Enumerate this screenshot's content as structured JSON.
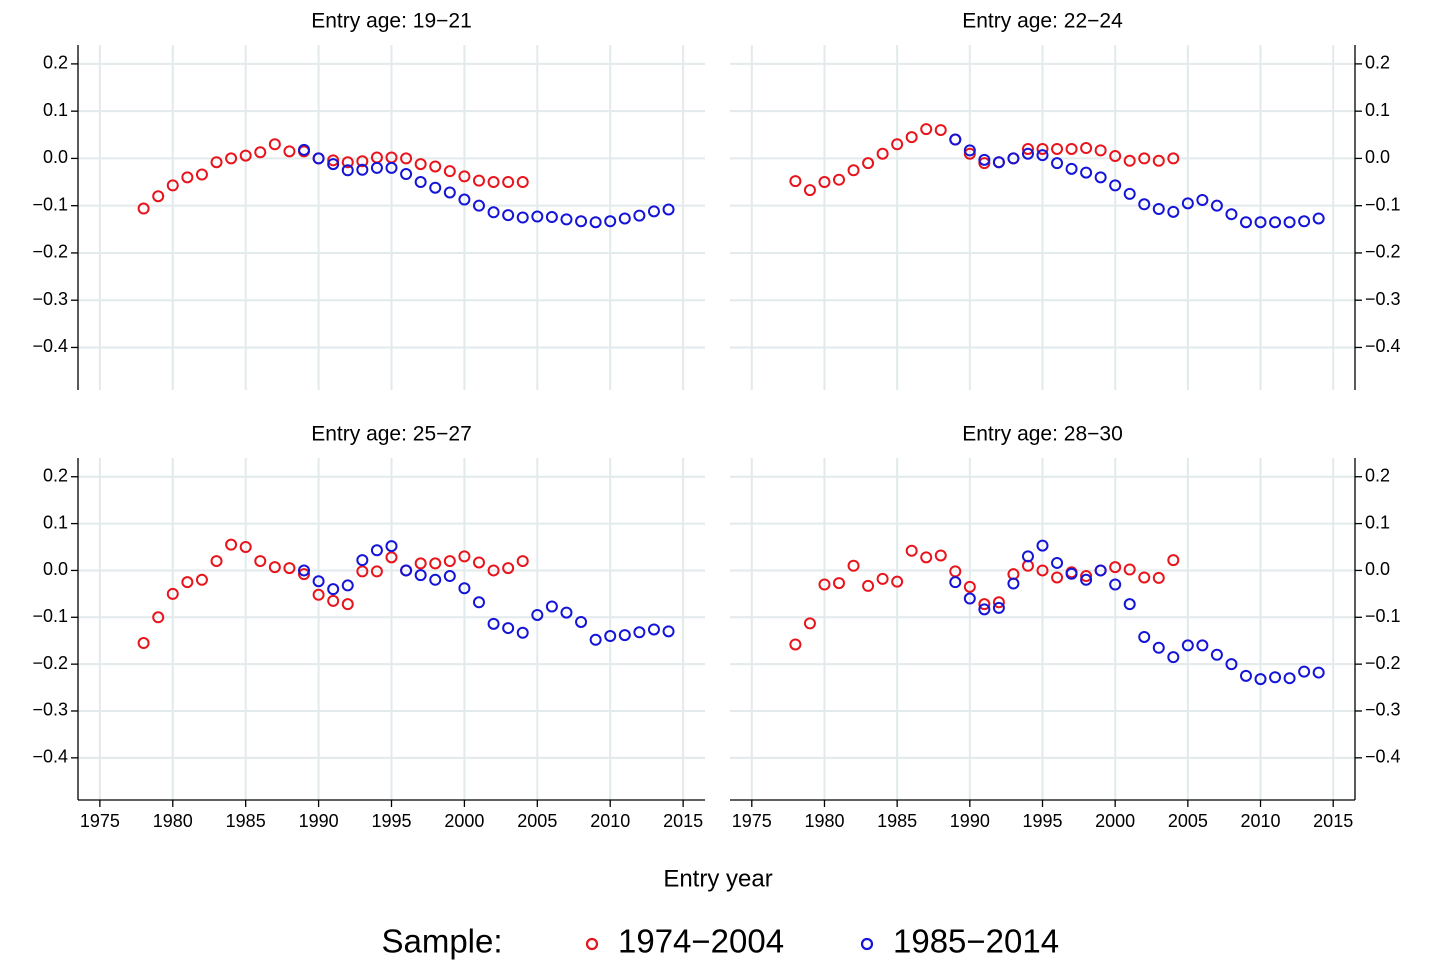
{
  "x_label": "Entry year",
  "legend_title": "Sample:",
  "chart_data": [
    {
      "type": "scatter",
      "title": "Entry age: 19−21",
      "y_axis_side": "left",
      "xtick_labels": false,
      "grid": true,
      "x": [
        1978,
        1979,
        1980,
        1981,
        1982,
        1983,
        1984,
        1985,
        1986,
        1987,
        1988,
        1989,
        1990,
        1991,
        1992,
        1993,
        1994,
        1995,
        1996,
        1997,
        1998,
        1999,
        2000,
        2001,
        2002,
        2003,
        2004,
        2005,
        2006,
        2007,
        2008,
        2009,
        2010,
        2011,
        2012,
        2013,
        2014
      ],
      "series": [
        {
          "name": "1974−2004",
          "color": "#e8141c",
          "values": [
            -0.106,
            -0.08,
            -0.057,
            -0.04,
            -0.034,
            -0.008,
            0.0,
            0.006,
            0.013,
            0.03,
            0.015,
            0.015,
            0.0,
            -0.004,
            -0.008,
            -0.006,
            0.002,
            0.002,
            0.0,
            -0.012,
            -0.017,
            -0.027,
            -0.038,
            -0.047,
            -0.05,
            -0.05,
            -0.05,
            null,
            null,
            null,
            null,
            null,
            null,
            null,
            null,
            null,
            null
          ]
        },
        {
          "name": "1985−2014",
          "color": "#1414d8",
          "values": [
            null,
            null,
            null,
            null,
            null,
            null,
            null,
            null,
            null,
            null,
            null,
            0.018,
            0.0,
            -0.012,
            -0.025,
            -0.024,
            -0.02,
            -0.02,
            -0.033,
            -0.05,
            -0.062,
            -0.072,
            -0.087,
            -0.1,
            -0.114,
            -0.12,
            -0.125,
            -0.123,
            -0.124,
            -0.129,
            -0.133,
            -0.135,
            -0.133,
            -0.127,
            -0.121,
            -0.112,
            -0.108
          ]
        }
      ],
      "xlim": [
        1973.5,
        2016.5
      ],
      "xticks": [
        1975,
        1980,
        1985,
        1990,
        1995,
        2000,
        2005,
        2010,
        2015
      ],
      "ylim": [
        -0.49,
        0.24
      ],
      "yticks": [
        {
          "value": -0.4,
          "label": "−0.4"
        },
        {
          "value": -0.3,
          "label": "−0.3"
        },
        {
          "value": -0.2,
          "label": "−0.2"
        },
        {
          "value": -0.1,
          "label": "−0.1"
        },
        {
          "value": 0,
          "label": "0.0"
        },
        0.1,
        0.2
      ]
    },
    {
      "type": "scatter",
      "title": "Entry age: 22−24",
      "y_axis_side": "right",
      "xtick_labels": false,
      "grid": true,
      "x": [
        1978,
        1979,
        1980,
        1981,
        1982,
        1983,
        1984,
        1985,
        1986,
        1987,
        1988,
        1989,
        1990,
        1991,
        1992,
        1993,
        1994,
        1995,
        1996,
        1997,
        1998,
        1999,
        2000,
        2001,
        2002,
        2003,
        2004,
        2005,
        2006,
        2007,
        2008,
        2009,
        2010,
        2011,
        2012,
        2013,
        2014
      ],
      "series": [
        {
          "name": "1974−2004",
          "color": "#e8141c",
          "values": [
            -0.048,
            -0.067,
            -0.05,
            -0.045,
            -0.025,
            -0.01,
            0.01,
            0.03,
            0.045,
            0.062,
            0.06,
            0.04,
            0.01,
            -0.01,
            -0.008,
            0.0,
            0.02,
            0.02,
            0.02,
            0.02,
            0.022,
            0.017,
            0.005,
            -0.005,
            0.0,
            -0.005,
            0.0,
            null,
            null,
            null,
            null,
            null,
            null,
            null,
            null,
            null,
            null
          ]
        },
        {
          "name": "1985−2014",
          "color": "#1414d8",
          "values": [
            null,
            null,
            null,
            null,
            null,
            null,
            null,
            null,
            null,
            null,
            null,
            0.04,
            0.017,
            -0.003,
            -0.008,
            0.0,
            0.01,
            0.007,
            -0.01,
            -0.022,
            -0.03,
            -0.04,
            -0.057,
            -0.075,
            -0.097,
            -0.107,
            -0.113,
            -0.095,
            -0.088,
            -0.1,
            -0.118,
            -0.135,
            -0.135,
            -0.135,
            -0.135,
            -0.133,
            -0.127
          ]
        }
      ],
      "xlim": [
        1973.5,
        2016.5
      ],
      "xticks": [
        1975,
        1980,
        1985,
        1990,
        1995,
        2000,
        2005,
        2010,
        2015
      ],
      "ylim": [
        -0.49,
        0.24
      ],
      "yticks": [
        {
          "value": -0.4,
          "label": "−0.4"
        },
        {
          "value": -0.3,
          "label": "−0.3"
        },
        {
          "value": -0.2,
          "label": "−0.2"
        },
        {
          "value": -0.1,
          "label": "−0.1"
        },
        {
          "value": 0,
          "label": "0.0"
        },
        0.1,
        0.2
      ]
    },
    {
      "type": "scatter",
      "title": "Entry age: 25−27",
      "y_axis_side": "left",
      "xtick_labels": true,
      "grid": true,
      "x": [
        1978,
        1979,
        1980,
        1981,
        1982,
        1983,
        1984,
        1985,
        1986,
        1987,
        1988,
        1989,
        1990,
        1991,
        1992,
        1993,
        1994,
        1995,
        1996,
        1997,
        1998,
        1999,
        2000,
        2001,
        2002,
        2003,
        2004,
        2005,
        2006,
        2007,
        2008,
        2009,
        2010,
        2011,
        2012,
        2013,
        2014
      ],
      "series": [
        {
          "name": "1974−2004",
          "color": "#e8141c",
          "values": [
            -0.155,
            -0.1,
            -0.05,
            -0.025,
            -0.02,
            0.02,
            0.055,
            0.05,
            0.02,
            0.007,
            0.005,
            -0.008,
            -0.052,
            -0.065,
            -0.072,
            -0.002,
            -0.002,
            0.028,
            0.0,
            0.015,
            0.015,
            0.02,
            0.03,
            0.017,
            0.0,
            0.005,
            0.02,
            null,
            null,
            null,
            null,
            null,
            null,
            null,
            null,
            null,
            null
          ]
        },
        {
          "name": "1985−2014",
          "color": "#1414d8",
          "values": [
            null,
            null,
            null,
            null,
            null,
            null,
            null,
            null,
            null,
            null,
            null,
            0.0,
            -0.023,
            -0.04,
            -0.032,
            0.022,
            0.043,
            0.052,
            0.0,
            -0.01,
            -0.02,
            -0.012,
            -0.038,
            -0.068,
            -0.114,
            -0.123,
            -0.133,
            -0.095,
            -0.077,
            -0.09,
            -0.11,
            -0.148,
            -0.14,
            -0.138,
            -0.132,
            -0.126,
            -0.13
          ]
        }
      ],
      "xlim": [
        1973.5,
        2016.5
      ],
      "xticks": [
        1975,
        1980,
        1985,
        1990,
        1995,
        2000,
        2005,
        2010,
        2015
      ],
      "ylim": [
        -0.49,
        0.24
      ],
      "yticks": [
        {
          "value": -0.4,
          "label": "−0.4"
        },
        {
          "value": -0.3,
          "label": "−0.3"
        },
        {
          "value": -0.2,
          "label": "−0.2"
        },
        {
          "value": -0.1,
          "label": "−0.1"
        },
        {
          "value": 0,
          "label": "0.0"
        },
        0.1,
        0.2
      ]
    },
    {
      "type": "scatter",
      "title": "Entry age: 28−30",
      "y_axis_side": "right",
      "xtick_labels": true,
      "grid": true,
      "x": [
        1978,
        1979,
        1980,
        1981,
        1982,
        1983,
        1984,
        1985,
        1986,
        1987,
        1988,
        1989,
        1990,
        1991,
        1992,
        1993,
        1994,
        1995,
        1996,
        1997,
        1998,
        1999,
        2000,
        2001,
        2002,
        2003,
        2004,
        2005,
        2006,
        2007,
        2008,
        2009,
        2010,
        2011,
        2012,
        2013,
        2014
      ],
      "series": [
        {
          "name": "1974−2004",
          "color": "#e8141c",
          "values": [
            -0.158,
            -0.113,
            -0.03,
            -0.027,
            0.01,
            -0.033,
            -0.018,
            -0.024,
            0.042,
            0.028,
            0.032,
            -0.002,
            -0.035,
            -0.072,
            -0.068,
            -0.008,
            0.01,
            0.0,
            -0.015,
            -0.004,
            -0.012,
            0.0,
            0.007,
            0.002,
            -0.015,
            -0.016,
            0.022,
            null,
            null,
            null,
            null,
            null,
            null,
            null,
            null,
            null,
            null
          ]
        },
        {
          "name": "1985−2014",
          "color": "#1414d8",
          "values": [
            null,
            null,
            null,
            null,
            null,
            null,
            null,
            null,
            null,
            null,
            null,
            -0.025,
            -0.06,
            -0.083,
            -0.08,
            -0.028,
            0.03,
            0.053,
            0.016,
            -0.007,
            -0.02,
            0.0,
            -0.03,
            -0.072,
            -0.142,
            -0.165,
            -0.185,
            -0.16,
            -0.16,
            -0.18,
            -0.2,
            -0.225,
            -0.232,
            -0.228,
            -0.23,
            -0.216,
            -0.218
          ]
        }
      ],
      "xlim": [
        1973.5,
        2016.5
      ],
      "xticks": [
        1975,
        1980,
        1985,
        1990,
        1995,
        2000,
        2005,
        2010,
        2015
      ],
      "ylim": [
        -0.49,
        0.24
      ],
      "yticks": [
        {
          "value": -0.4,
          "label": "−0.4"
        },
        {
          "value": -0.3,
          "label": "−0.3"
        },
        {
          "value": -0.2,
          "label": "−0.2"
        },
        {
          "value": -0.1,
          "label": "−0.1"
        },
        {
          "value": 0,
          "label": "0.0"
        },
        0.1,
        0.2
      ]
    }
  ]
}
